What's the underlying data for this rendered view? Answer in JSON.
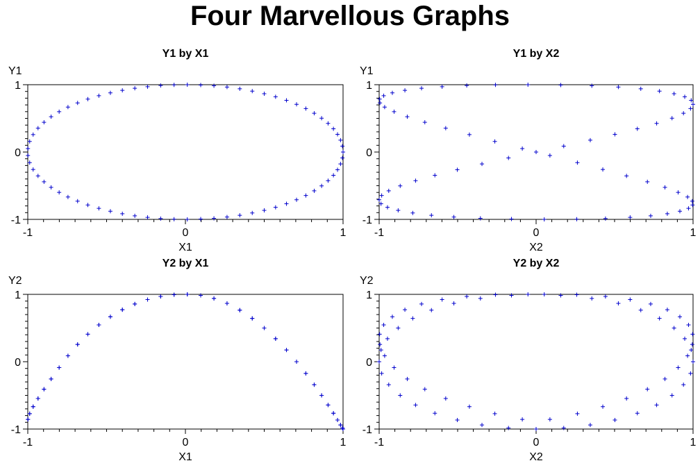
{
  "title": "Four Marvellous Graphs",
  "colors": {
    "marker": "#0000cc",
    "frame": "#000000"
  },
  "chart_data": [
    {
      "type": "scatter",
      "title": "Y1 by X1",
      "xlabel": "X1",
      "ylabel": "Y1",
      "xlim": [
        -1,
        1
      ],
      "ylim": [
        -1,
        1
      ],
      "xticks": [
        "-1",
        "0",
        "1"
      ],
      "yticks": [
        "-1",
        "0",
        "1"
      ],
      "marker": "+",
      "grid": false,
      "x": [
        1.0,
        0.996,
        0.984,
        0.965,
        0.939,
        0.905,
        0.864,
        0.817,
        0.764,
        0.705,
        0.641,
        0.572,
        0.5,
        0.424,
        0.345,
        0.264,
        0.181,
        0.097,
        0.012,
        -0.072,
        -0.157,
        -0.24,
        -0.321,
        -0.4,
        -0.476,
        -0.549,
        -0.619,
        -0.684,
        -0.745,
        -0.801,
        -0.852,
        -0.897,
        -0.935,
        -0.966,
        -0.988,
        -0.999,
        -0.999,
        -0.988,
        -0.966,
        -0.935,
        -0.897,
        -0.852,
        -0.801,
        -0.745,
        -0.684,
        -0.619,
        -0.549,
        -0.476,
        -0.4,
        -0.321,
        -0.24,
        -0.157,
        -0.072,
        0.012,
        0.097,
        0.181,
        0.264,
        0.345,
        0.424,
        0.5,
        0.572,
        0.641,
        0.705,
        0.764,
        0.817,
        0.864,
        0.905,
        0.939,
        0.965,
        0.984,
        0.996
      ],
      "y": [
        0.0,
        0.088,
        0.176,
        0.263,
        0.345,
        0.425,
        0.502,
        0.576,
        0.645,
        0.709,
        0.768,
        0.821,
        0.866,
        0.905,
        0.939,
        0.965,
        0.984,
        0.995,
        1.0,
        0.997,
        0.988,
        0.971,
        0.947,
        0.916,
        0.879,
        0.836,
        0.786,
        0.73,
        0.667,
        0.599,
        0.524,
        0.442,
        0.355,
        0.259,
        0.157,
        0.052,
        -0.052,
        -0.157,
        -0.259,
        -0.355,
        -0.442,
        -0.524,
        -0.599,
        -0.667,
        -0.73,
        -0.786,
        -0.836,
        -0.879,
        -0.916,
        -0.947,
        -0.971,
        -0.988,
        -0.997,
        -1.0,
        -0.995,
        -0.984,
        -0.965,
        -0.939,
        -0.905,
        -0.866,
        -0.821,
        -0.768,
        -0.709,
        -0.645,
        -0.576,
        -0.502,
        -0.425,
        -0.345,
        -0.263,
        -0.176,
        -0.088
      ]
    },
    {
      "type": "scatter",
      "title": "Y1 by X2",
      "xlabel": "X2",
      "ylabel": "Y1",
      "xlim": [
        -1,
        1
      ],
      "ylim": [
        -1,
        1
      ],
      "xticks": [
        "-1",
        "0",
        "1"
      ],
      "yticks": [
        "-1",
        "0",
        "1"
      ],
      "marker": "+",
      "grid": false,
      "x": [
        0.0,
        0.176,
        0.345,
        0.502,
        0.645,
        0.768,
        0.866,
        0.939,
        0.984,
        1.0,
        0.988,
        0.947,
        0.879,
        0.786,
        0.667,
        0.524,
        0.355,
        0.157,
        -0.052,
        -0.259,
        -0.442,
        -0.599,
        -0.73,
        -0.836,
        -0.916,
        -0.971,
        -0.997,
        -0.995,
        -0.965,
        -0.905,
        -0.821,
        -0.709,
        -0.576,
        -0.425,
        -0.263,
        -0.088,
        0.088,
        0.263,
        0.425,
        0.576,
        0.709,
        0.821,
        0.905,
        0.965,
        0.995,
        0.997,
        0.971,
        0.916,
        0.836,
        0.73,
        0.599,
        0.442,
        0.259,
        0.052,
        -0.157,
        -0.355,
        -0.524,
        -0.667,
        -0.786,
        -0.879,
        -0.947,
        -0.988,
        -1.0,
        -0.984,
        -0.939,
        -0.866,
        -0.768,
        -0.645,
        -0.502,
        -0.345,
        -0.176
      ],
      "y": [
        0.0,
        0.088,
        0.176,
        0.263,
        0.345,
        0.425,
        0.502,
        0.576,
        0.645,
        0.709,
        0.768,
        0.821,
        0.866,
        0.905,
        0.939,
        0.965,
        0.984,
        0.995,
        1.0,
        0.997,
        0.988,
        0.971,
        0.947,
        0.916,
        0.879,
        0.836,
        0.786,
        0.73,
        0.667,
        0.599,
        0.524,
        0.442,
        0.355,
        0.259,
        0.157,
        0.052,
        -0.052,
        -0.157,
        -0.259,
        -0.355,
        -0.442,
        -0.524,
        -0.599,
        -0.667,
        -0.73,
        -0.786,
        -0.836,
        -0.879,
        -0.916,
        -0.947,
        -0.971,
        -0.988,
        -0.997,
        -1.0,
        -0.995,
        -0.984,
        -0.965,
        -0.939,
        -0.905,
        -0.866,
        -0.821,
        -0.768,
        -0.709,
        -0.645,
        -0.576,
        -0.502,
        -0.425,
        -0.345,
        -0.263,
        -0.176,
        -0.088
      ]
    },
    {
      "type": "scatter",
      "title": "Y2 by X1",
      "xlabel": "X1",
      "ylabel": "Y2",
      "xlim": [
        -1,
        1
      ],
      "ylim": [
        -1,
        1
      ],
      "xticks": [
        "-1",
        "0",
        "1"
      ],
      "yticks": [
        "-1",
        "0",
        "1"
      ],
      "marker": "+",
      "grid": false,
      "x": [
        1.0,
        0.996,
        0.984,
        0.965,
        0.939,
        0.905,
        0.864,
        0.817,
        0.764,
        0.705,
        0.641,
        0.572,
        0.5,
        0.424,
        0.345,
        0.264,
        0.181,
        0.097,
        0.012,
        -0.072,
        -0.157,
        -0.24,
        -0.321,
        -0.4,
        -0.476,
        -0.549,
        -0.619,
        -0.684,
        -0.745,
        -0.801,
        -0.852,
        -0.897,
        -0.935,
        -0.966,
        -0.988,
        -0.999,
        -0.999,
        -0.988,
        -0.966,
        -0.935,
        -0.897,
        -0.852,
        -0.801,
        -0.745,
        -0.684,
        -0.619,
        -0.549,
        -0.476,
        -0.4,
        -0.321,
        -0.24,
        -0.157,
        -0.072,
        0.012,
        0.097,
        0.181,
        0.264,
        0.345,
        0.424,
        0.5,
        0.572,
        0.641,
        0.705,
        0.764,
        0.817,
        0.864,
        0.905,
        0.939,
        0.965,
        0.984,
        0.996
      ],
      "y": [
        -1.0,
        -0.984,
        -0.939,
        -0.866,
        -0.766,
        -0.643,
        -0.5,
        -0.342,
        -0.174,
        0.0,
        0.174,
        0.342,
        0.5,
        0.643,
        0.766,
        0.866,
        0.939,
        0.984,
        1.0,
        0.995,
        0.969,
        0.923,
        0.857,
        0.772,
        0.668,
        0.547,
        0.409,
        0.256,
        0.088,
        -0.088,
        -0.256,
        -0.409,
        -0.547,
        -0.668,
        -0.772,
        -0.857,
        -0.857,
        -0.772,
        -0.668,
        -0.547,
        -0.409,
        -0.256,
        -0.088,
        0.088,
        0.256,
        0.409,
        0.547,
        0.668,
        0.772,
        0.857,
        0.923,
        0.969,
        0.995,
        1.0,
        0.984,
        0.939,
        0.866,
        0.766,
        0.643,
        0.5,
        0.342,
        0.174,
        0.0,
        -0.174,
        -0.342,
        -0.5,
        -0.643,
        -0.766,
        -0.866,
        -0.939,
        -0.984
      ]
    },
    {
      "type": "scatter",
      "title": "Y2 by X2",
      "xlabel": "X2",
      "ylabel": "Y2",
      "xlim": [
        -1,
        1
      ],
      "ylim": [
        -1,
        1
      ],
      "xticks": [
        "-1",
        "0",
        "1"
      ],
      "yticks": [
        "-1",
        "0",
        "1"
      ],
      "marker": "+",
      "grid": false,
      "x": [
        0.0,
        0.176,
        0.345,
        0.502,
        0.645,
        0.768,
        0.866,
        0.939,
        0.984,
        1.0,
        0.988,
        0.947,
        0.879,
        0.786,
        0.667,
        0.524,
        0.355,
        0.157,
        -0.052,
        -0.259,
        -0.442,
        -0.599,
        -0.73,
        -0.836,
        -0.916,
        -0.971,
        -0.997,
        -0.995,
        -0.965,
        -0.905,
        -0.821,
        -0.709,
        -0.576,
        -0.425,
        -0.263,
        -0.088,
        0.088,
        0.263,
        0.425,
        0.576,
        0.709,
        0.821,
        0.905,
        0.965,
        0.995,
        0.997,
        0.971,
        0.916,
        0.836,
        0.73,
        0.599,
        0.442,
        0.259,
        0.052,
        -0.157,
        -0.355,
        -0.524,
        -0.667,
        -0.786,
        -0.879,
        -0.947,
        -0.988,
        -1.0,
        -0.984,
        -0.939,
        -0.866,
        -0.768,
        -0.645,
        -0.502,
        -0.345,
        -0.176
      ],
      "y": [
        -1.0,
        -0.984,
        -0.939,
        -0.866,
        -0.766,
        -0.643,
        -0.5,
        -0.342,
        -0.174,
        0.0,
        0.174,
        0.342,
        0.5,
        0.643,
        0.766,
        0.866,
        0.939,
        0.984,
        1.0,
        0.995,
        0.969,
        0.923,
        0.857,
        0.772,
        0.668,
        0.547,
        0.409,
        0.256,
        0.088,
        -0.088,
        -0.256,
        -0.409,
        -0.547,
        -0.668,
        -0.772,
        -0.857,
        -0.857,
        -0.772,
        -0.668,
        -0.547,
        -0.409,
        -0.256,
        -0.088,
        0.088,
        0.256,
        0.409,
        0.547,
        0.668,
        0.772,
        0.857,
        0.923,
        0.969,
        0.995,
        1.0,
        0.984,
        0.939,
        0.866,
        0.766,
        0.643,
        0.5,
        0.342,
        0.174,
        0.0,
        -0.174,
        -0.342,
        -0.5,
        -0.643,
        -0.766,
        -0.866,
        -0.939,
        -0.984
      ]
    }
  ]
}
